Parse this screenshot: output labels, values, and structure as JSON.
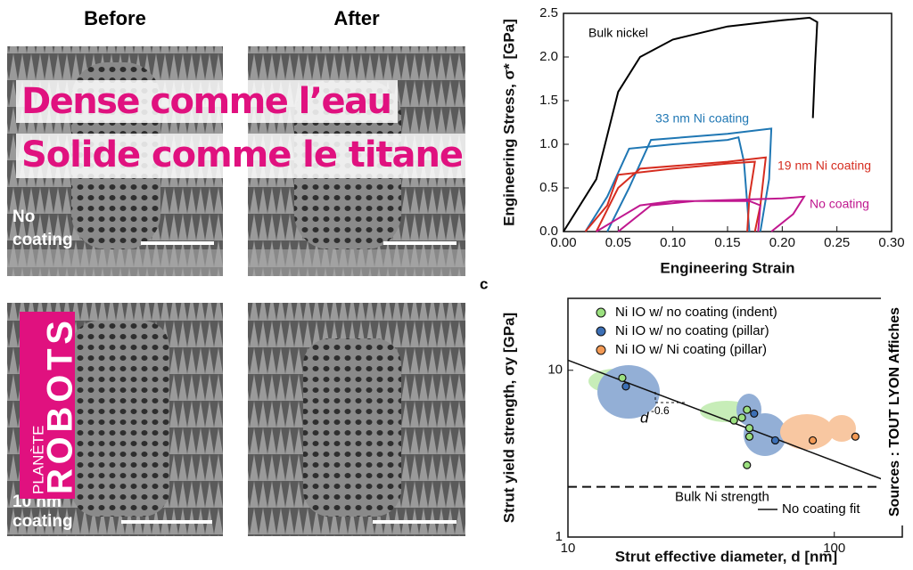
{
  "photos": {
    "columns": [
      "Before",
      "After"
    ],
    "rows": [
      [
        "No",
        "coating"
      ],
      [
        "10 nm",
        "coating"
      ]
    ]
  },
  "headline": [
    "Dense comme l’eau",
    "Solide comme le titane"
  ],
  "logo": {
    "small": "PLANÈTE",
    "big": "ROBOTS"
  },
  "source": "Sources : TOUT LYON Affiches",
  "chart_data": [
    {
      "type": "line",
      "x_label": "Engineering Strain",
      "y_label": "Engineering Stress, σ* [GPa]",
      "xlim": [
        0,
        0.3
      ],
      "ylim": [
        0,
        2.5
      ],
      "xticks": [
        {
          "value": 0,
          "label": "0.00"
        },
        0.05,
        {
          "value": 0.1,
          "label": "0.10"
        },
        0.15,
        {
          "value": 0.2,
          "label": "0.20"
        },
        0.25,
        {
          "value": 0.3,
          "label": "0.30"
        }
      ],
      "yticks": [
        {
          "value": 0,
          "label": "0.0"
        },
        0.5,
        {
          "value": 1,
          "label": "1.0"
        },
        1.5,
        {
          "value": 2,
          "label": "2.0"
        },
        2.5
      ],
      "series": [
        {
          "name": "Bulk nickel",
          "color": "#000000",
          "x": [
            0,
            0.03,
            0.05,
            0.07,
            0.1,
            0.15,
            0.2,
            0.225,
            0.232,
            0.23,
            0.228
          ],
          "values": [
            0,
            0.6,
            1.6,
            2.0,
            2.2,
            2.35,
            2.42,
            2.45,
            2.4,
            1.9,
            1.3
          ]
        },
        {
          "name": "33 nm Ni coating",
          "color": "#1f77b4",
          "x": [
            0.02,
            0.04,
            0.06,
            0.1,
            0.15,
            0.16,
            0.165,
            0.17,
            null,
            0.04,
            0.06,
            0.08,
            0.15,
            0.19,
            0.188,
            0.18
          ],
          "values": [
            0,
            0.4,
            0.95,
            1.0,
            1.05,
            1.08,
            0.8,
            0,
            null,
            0,
            0.5,
            1.05,
            1.12,
            1.18,
            0.6,
            0
          ]
        },
        {
          "name": "19 nm Ni coating",
          "color": "#d62d20",
          "x": [
            0.02,
            0.04,
            0.05,
            0.1,
            0.15,
            0.175,
            0.17,
            0.168,
            null,
            0.03,
            0.05,
            0.07,
            0.15,
            0.185,
            0.18,
            0.175
          ],
          "values": [
            0,
            0.3,
            0.65,
            0.72,
            0.78,
            0.8,
            0.4,
            0,
            null,
            0,
            0.5,
            0.72,
            0.8,
            0.85,
            0.3,
            0
          ]
        },
        {
          "name": "No coating",
          "color": "#c0188f",
          "x": [
            0.03,
            0.05,
            0.07,
            0.1,
            0.17,
            0.18,
            0.178,
            null,
            0.05,
            0.08,
            0.12,
            0.2,
            0.22,
            0.21,
            0.19
          ],
          "values": [
            0,
            0.15,
            0.3,
            0.35,
            0.35,
            0.3,
            0,
            null,
            0,
            0.3,
            0.35,
            0.38,
            0.4,
            0.2,
            0
          ]
        }
      ]
    },
    {
      "type": "scatter",
      "panel": "c",
      "x_label": "Strut effective diameter, d [nm]",
      "y_label": "Strut yield strength, σy [GPa]",
      "log_scale": true,
      "xlim": [
        10,
        180
      ],
      "ylim": [
        1,
        27
      ],
      "xticks": [
        10,
        100
      ],
      "yticks": [
        1,
        10
      ],
      "series": [
        {
          "name": "Ni IO w/ no coating (indent)",
          "color": "#9be07f",
          "x": [
            16,
            42,
            45,
            47,
            48,
            48,
            47
          ],
          "values": [
            9,
            5,
            5.2,
            5.8,
            4.5,
            4,
            2.7
          ]
        },
        {
          "name": "Ni IO w/ no coating (pillar)",
          "color": "#3c6fb5",
          "x": [
            16.5,
            50,
            60
          ],
          "values": [
            8,
            5.5,
            3.8
          ]
        },
        {
          "name": "Ni IO w/ Ni coating  (pillar)",
          "color": "#f39a55",
          "x": [
            83,
            120
          ],
          "values": [
            3.8,
            4
          ]
        }
      ],
      "fit": {
        "name": "No coating fit",
        "x": [
          10,
          180
        ],
        "values": [
          11.5,
          2.0
        ],
        "annotation": "d",
        "exponent": "-0.6"
      },
      "reference": {
        "label": "Bulk Ni strength",
        "value": 2
      }
    }
  ]
}
